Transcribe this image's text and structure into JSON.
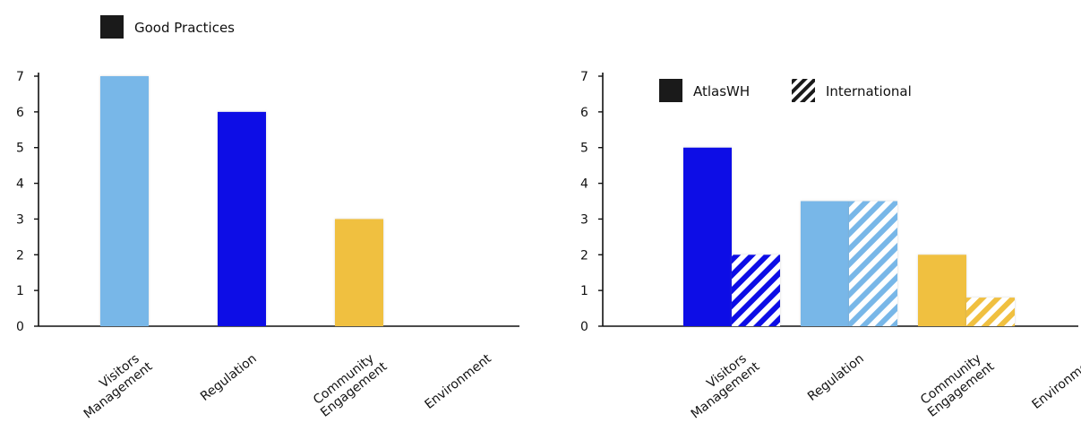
{
  "chart_data": [
    {
      "type": "bar",
      "categories": [
        [
          "Visitors",
          "Management"
        ],
        [
          "Regulation"
        ],
        [
          "Community",
          "Engagement"
        ],
        [
          "Environment"
        ]
      ],
      "series": [
        {
          "name": "Good Practices",
          "values": [
            7,
            6,
            3,
            0
          ],
          "colors": [
            "#78b7e8",
            "#1010e6",
            "#f0c040",
            "#ffffff"
          ]
        }
      ],
      "ylim": [
        0,
        7
      ],
      "yticks": [
        "0",
        "1",
        "2",
        "3",
        "4",
        "5",
        "6",
        "7"
      ],
      "legend": [
        {
          "label": "Good Practices",
          "style": "solid"
        }
      ],
      "legend_position": "top-left"
    },
    {
      "type": "bar",
      "categories": [
        [
          "Visitors",
          "Management"
        ],
        [
          "Regulation"
        ],
        [
          "Community",
          "Engagement"
        ],
        [
          "Environment"
        ]
      ],
      "series": [
        {
          "name": "AtlasWH",
          "values": [
            5,
            3.5,
            2,
            0
          ],
          "style": "solid"
        },
        {
          "name": "International",
          "values": [
            2,
            3.5,
            0.8,
            0
          ],
          "style": "hatched"
        }
      ],
      "category_colors": [
        "#1010e6",
        "#78b7e8",
        "#f0c040",
        "#ffffff"
      ],
      "ylim": [
        0,
        7
      ],
      "yticks": [
        "0",
        "1",
        "2",
        "3",
        "4",
        "5",
        "6",
        "7"
      ],
      "legend": [
        {
          "label": "AtlasWH",
          "style": "solid"
        },
        {
          "label": "International",
          "style": "hatched"
        }
      ],
      "legend_position": "top-left"
    }
  ],
  "colors": {
    "axis": "#111111",
    "legend_swatch": "#1a1a1a"
  }
}
